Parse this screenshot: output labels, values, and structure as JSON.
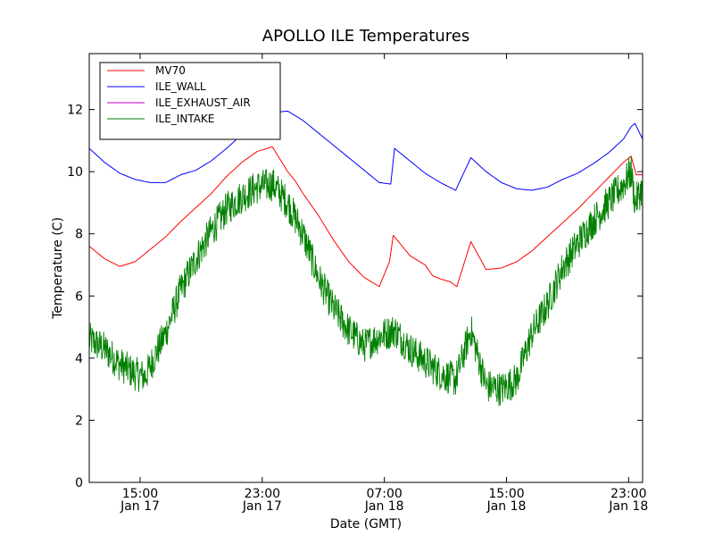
{
  "chart_data": {
    "type": "line",
    "title": "APOLLO ILE Temperatures",
    "xlabel": "Date (GMT)",
    "ylabel": "Temperature (C)",
    "xlim": [
      "2014-01-17T11:40",
      "2014-01-18T23:55"
    ],
    "ylim": [
      0,
      13.8
    ],
    "yticks": [
      0,
      2,
      4,
      6,
      8,
      10,
      12
    ],
    "xticks": [
      {
        "x": "2014-01-17T15:00",
        "label": "15:00",
        "sublabel": "Jan 17"
      },
      {
        "x": "2014-01-17T23:00",
        "label": "23:00",
        "sublabel": "Jan 17"
      },
      {
        "x": "2014-01-18T07:00",
        "label": "07:00",
        "sublabel": "Jan 18"
      },
      {
        "x": "2014-01-18T15:00",
        "label": "15:00",
        "sublabel": "Jan 18"
      },
      {
        "x": "2014-01-18T23:00",
        "label": "23:00",
        "sublabel": "Jan 18"
      }
    ],
    "grid": false,
    "legend": "top-left",
    "series": [
      {
        "name": "MV70",
        "color": "#ff0000",
        "noise": 0,
        "x": [
          "2014-01-17T11:40",
          "2014-01-17T12:40",
          "2014-01-17T13:40",
          "2014-01-17T14:40",
          "2014-01-17T15:40",
          "2014-01-17T16:40",
          "2014-01-17T17:40",
          "2014-01-17T18:40",
          "2014-01-17T19:40",
          "2014-01-17T20:40",
          "2014-01-17T21:40",
          "2014-01-17T22:40",
          "2014-01-17T23:40",
          "2014-01-18T00:40",
          "2014-01-18T01:10",
          "2014-01-18T01:40",
          "2014-01-18T02:40",
          "2014-01-18T03:40",
          "2014-01-18T04:40",
          "2014-01-18T05:40",
          "2014-01-18T06:10",
          "2014-01-18T06:40",
          "2014-01-18T07:20",
          "2014-01-18T07:35",
          "2014-01-18T08:10",
          "2014-01-18T08:40",
          "2014-01-18T09:40",
          "2014-01-18T10:10",
          "2014-01-18T10:40",
          "2014-01-18T11:20",
          "2014-01-18T11:45",
          "2014-01-18T12:40",
          "2014-01-18T13:40",
          "2014-01-18T14:40",
          "2014-01-18T15:40",
          "2014-01-18T16:40",
          "2014-01-18T17:40",
          "2014-01-18T18:40",
          "2014-01-18T19:40",
          "2014-01-18T20:40",
          "2014-01-18T21:40",
          "2014-01-18T22:40",
          "2014-01-18T23:10",
          "2014-01-18T23:30",
          "2014-01-18T23:55"
        ],
        "y": [
          7.6,
          7.2,
          6.95,
          7.1,
          7.5,
          7.9,
          8.4,
          8.85,
          9.3,
          9.85,
          10.3,
          10.65,
          10.8,
          10.0,
          9.7,
          9.3,
          8.6,
          7.8,
          7.1,
          6.6,
          6.45,
          6.3,
          7.1,
          7.95,
          7.6,
          7.3,
          7.0,
          6.65,
          6.55,
          6.45,
          6.3,
          7.75,
          6.85,
          6.9,
          7.1,
          7.45,
          7.9,
          8.35,
          8.8,
          9.3,
          9.8,
          10.3,
          10.5,
          9.9,
          9.9
        ]
      },
      {
        "name": "ILE_WALL",
        "color": "#0000ff",
        "noise": 0,
        "x": [
          "2014-01-17T11:40",
          "2014-01-17T12:40",
          "2014-01-17T13:40",
          "2014-01-17T14:40",
          "2014-01-17T15:40",
          "2014-01-17T16:40",
          "2014-01-17T17:40",
          "2014-01-17T18:40",
          "2014-01-17T19:40",
          "2014-01-17T20:40",
          "2014-01-17T21:40",
          "2014-01-17T22:40",
          "2014-01-17T23:40",
          "2014-01-18T00:40",
          "2014-01-18T01:40",
          "2014-01-18T02:40",
          "2014-01-18T03:40",
          "2014-01-18T04:40",
          "2014-01-18T05:40",
          "2014-01-18T06:40",
          "2014-01-18T07:25",
          "2014-01-18T07:40",
          "2014-01-18T08:40",
          "2014-01-18T09:40",
          "2014-01-18T10:40",
          "2014-01-18T11:40",
          "2014-01-18T12:40",
          "2014-01-18T13:40",
          "2014-01-18T14:40",
          "2014-01-18T15:40",
          "2014-01-18T16:40",
          "2014-01-18T17:40",
          "2014-01-18T18:40",
          "2014-01-18T19:40",
          "2014-01-18T20:40",
          "2014-01-18T21:40",
          "2014-01-18T22:40",
          "2014-01-18T23:10",
          "2014-01-18T23:25",
          "2014-01-18T23:55"
        ],
        "y": [
          10.75,
          10.3,
          9.95,
          9.75,
          9.65,
          9.65,
          9.9,
          10.05,
          10.35,
          10.75,
          11.2,
          11.55,
          11.9,
          11.95,
          11.65,
          11.25,
          10.85,
          10.45,
          10.05,
          9.65,
          9.6,
          10.75,
          10.35,
          9.95,
          9.65,
          9.4,
          10.45,
          10.0,
          9.65,
          9.45,
          9.4,
          9.5,
          9.75,
          9.95,
          10.25,
          10.6,
          11.05,
          11.45,
          11.55,
          11.05
        ]
      },
      {
        "name": "ILE_EXHAUST_AIR",
        "color": "#bf00bf",
        "noise": 0,
        "x": [],
        "y": []
      },
      {
        "name": "ILE_INTAKE",
        "color": "#008000",
        "noise": 0.55,
        "x": [
          "2014-01-17T11:40",
          "2014-01-17T12:40",
          "2014-01-17T13:40",
          "2014-01-17T14:40",
          "2014-01-17T15:20",
          "2014-01-17T16:40",
          "2014-01-17T17:40",
          "2014-01-17T18:40",
          "2014-01-17T19:40",
          "2014-01-17T20:40",
          "2014-01-17T21:40",
          "2014-01-17T22:40",
          "2014-01-17T23:40",
          "2014-01-18T00:40",
          "2014-01-18T01:40",
          "2014-01-18T02:40",
          "2014-01-18T03:40",
          "2014-01-18T04:40",
          "2014-01-18T05:40",
          "2014-01-18T06:40",
          "2014-01-18T07:40",
          "2014-01-18T08:40",
          "2014-01-18T09:40",
          "2014-01-18T10:40",
          "2014-01-18T11:40",
          "2014-01-18T12:40",
          "2014-01-18T13:40",
          "2014-01-18T14:40",
          "2014-01-18T15:40",
          "2014-01-18T16:40",
          "2014-01-18T17:40",
          "2014-01-18T18:40",
          "2014-01-18T19:40",
          "2014-01-18T20:40",
          "2014-01-18T21:40",
          "2014-01-18T22:40",
          "2014-01-18T23:10",
          "2014-01-18T23:25",
          "2014-01-18T23:55"
        ],
        "y": [
          4.6,
          4.3,
          3.8,
          3.5,
          3.4,
          4.8,
          6.2,
          7.2,
          8.1,
          8.8,
          9.2,
          9.5,
          9.6,
          9.0,
          8.0,
          6.6,
          5.6,
          4.9,
          4.4,
          4.7,
          4.9,
          4.3,
          3.9,
          3.5,
          3.3,
          4.9,
          3.1,
          3.0,
          3.3,
          4.8,
          5.7,
          6.9,
          7.7,
          8.4,
          9.0,
          9.6,
          10.0,
          9.0,
          9.5
        ]
      }
    ]
  }
}
